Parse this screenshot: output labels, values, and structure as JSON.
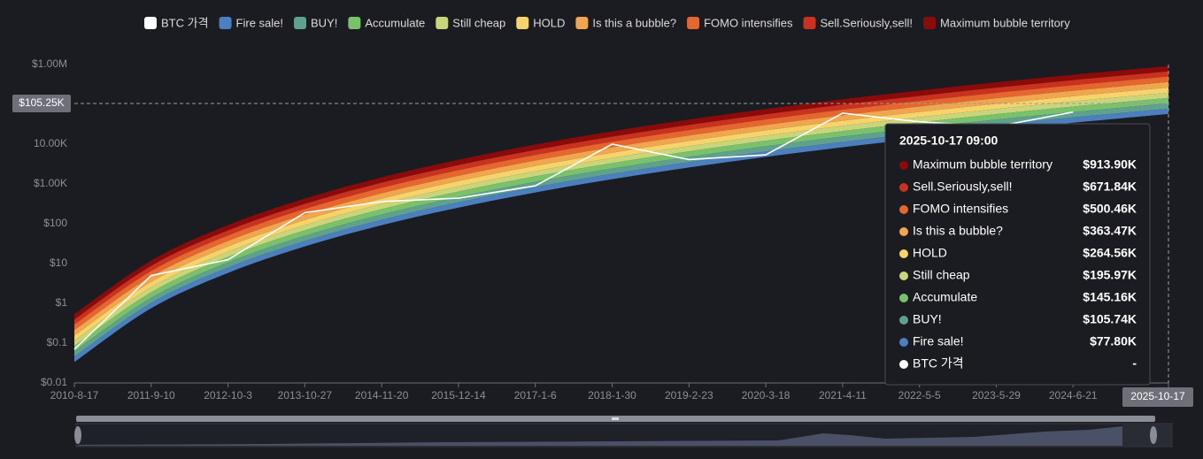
{
  "chart_data": {
    "type": "rainbow",
    "log_scale": true,
    "grid": false,
    "x": [
      "2010-8-17",
      "2011-9-10",
      "2012-10-3",
      "2013-10-27",
      "2014-11-20",
      "2015-12-14",
      "2017-1-6",
      "2018-1-30",
      "2019-2-23",
      "2020-3-18",
      "2021-4-11",
      "2022-5-5",
      "2023-5-29",
      "2024-6-21",
      "2025-10-17"
    ],
    "ylim": [
      0.01,
      1000000
    ],
    "yticks": [
      {
        "value": 0.01,
        "label": "$0.01"
      },
      {
        "value": 0.1,
        "label": "$0.1"
      },
      {
        "value": 1,
        "label": "$1"
      },
      {
        "value": 10,
        "label": "$10"
      },
      {
        "value": 100,
        "label": "$100"
      },
      {
        "value": 1000,
        "label": "$1.00K"
      },
      {
        "value": 10000,
        "label": "10.00K"
      },
      {
        "value": 1000000,
        "label": "$1.00M"
      }
    ],
    "series": [
      {
        "name": "BTC 가격",
        "color": "#ffffff",
        "values": [
          0.07,
          5,
          12.5,
          190,
          360,
          440,
          900,
          10000,
          4100,
          5400,
          60000,
          36500,
          27700,
          64000,
          null
        ]
      },
      {
        "name": "Fire sale!",
        "color": "#4c7fbd",
        "values": [
          0.0456,
          1.02,
          7.89,
          36.6,
          125,
          346,
          832,
          1790,
          3530,
          6520,
          11400,
          18900,
          30400,
          47100,
          77800
        ]
      },
      {
        "name": "BUY!",
        "color": "#5fa08e",
        "values": [
          0.062,
          1.38,
          10.7,
          49.8,
          170,
          470,
          1130,
          2430,
          4800,
          8860,
          15500,
          25700,
          41300,
          64000,
          105740
        ]
      },
      {
        "name": "Accumulate",
        "color": "#79c26b",
        "values": [
          0.0851,
          1.89,
          14.7,
          68.3,
          233,
          645,
          1550,
          3330,
          6590,
          12200,
          21300,
          35300,
          56600,
          87800,
          145160
        ]
      },
      {
        "name": "Still cheap",
        "color": "#c9d57a",
        "values": [
          0.115,
          2.55,
          19.9,
          92.2,
          315,
          871,
          2090,
          4500,
          8900,
          16400,
          28700,
          47600,
          76400,
          119000,
          195970
        ]
      },
      {
        "name": "HOLD",
        "color": "#f6d36b",
        "values": [
          0.155,
          3.45,
          26.8,
          124,
          426,
          1180,
          2830,
          6080,
          12000,
          22200,
          38800,
          64300,
          103000,
          160000,
          264560
        ]
      },
      {
        "name": "Is this a bubble?",
        "color": "#f0a54f",
        "values": [
          0.213,
          4.73,
          36.9,
          171,
          585,
          1610,
          3890,
          8350,
          16500,
          30500,
          53300,
          88300,
          142000,
          220000,
          363470
        ]
      },
      {
        "name": "FOMO intensifies",
        "color": "#e5672f",
        "values": [
          0.294,
          6.52,
          50.8,
          235,
          805,
          2220,
          5350,
          11500,
          22700,
          41900,
          73400,
          122000,
          195000,
          303000,
          500460
        ]
      },
      {
        "name": "Sell.Seriously,sell!",
        "color": "#c8321f",
        "values": [
          0.394,
          8.75,
          68.1,
          316,
          1080,
          2980,
          7180,
          15400,
          30500,
          56300,
          98500,
          163000,
          262000,
          407000,
          671840
        ]
      },
      {
        "name": "Maximum bubble territory",
        "color": "#8b0a0a",
        "values": [
          0.536,
          11.9,
          92.7,
          430,
          1470,
          4060,
          9770,
          21000,
          41500,
          76600,
          134000,
          222000,
          357000,
          553000,
          913900
        ]
      }
    ],
    "crosshair": {
      "value": 105250,
      "label": "$105.25K"
    },
    "tooltip": {
      "title": "2025-10-17 09:00",
      "labels": [
        "$913.90K",
        "$671.84K",
        "$500.46K",
        "$363.47K",
        "$264.56K",
        "$195.97K",
        "$145.16K",
        "$105.74K",
        "$77.80K",
        "-"
      ]
    }
  }
}
